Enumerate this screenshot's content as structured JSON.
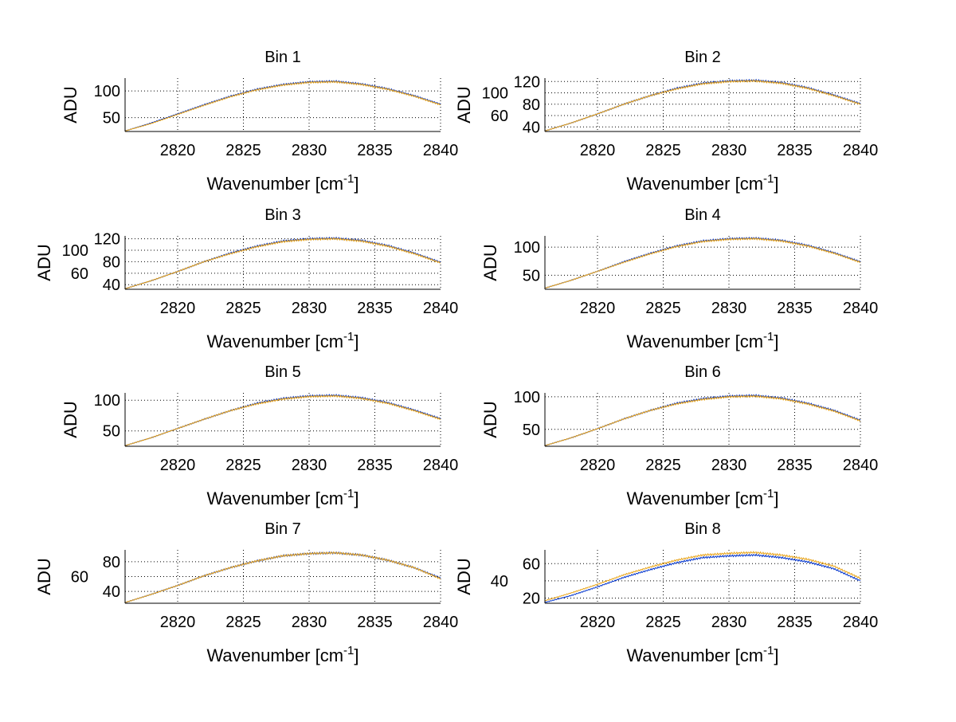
{
  "chart_data": {
    "type": "line",
    "layout": "4x2 grid",
    "x": [
      2816,
      2818,
      2820,
      2822,
      2824,
      2826,
      2828,
      2830,
      2832,
      2834,
      2836,
      2838,
      2840
    ],
    "xlim": [
      2816,
      2840
    ],
    "xticks": [
      2820,
      2825,
      2830,
      2835,
      2840
    ],
    "xlabel": "Wavenumber [cm",
    "xlabel_sup": "-1",
    "xlabel_end": "]",
    "ylabel": "ADU",
    "grid": true,
    "series_colors": [
      "#0033cc",
      "#e8a317"
    ],
    "subplots": [
      {
        "title": "Bin 1",
        "ylim": [
          24,
          124
        ],
        "yticks": [
          50,
          100
        ],
        "series": [
          [
            25,
            40,
            57,
            74,
            90,
            103,
            112,
            117,
            118,
            113,
            104,
            91,
            75
          ],
          [
            25,
            39,
            56,
            73,
            89,
            102,
            111,
            116,
            117,
            112,
            103,
            90,
            74
          ]
        ]
      },
      {
        "title": "Bin 2",
        "ylim": [
          32,
          126
        ],
        "yticks": [
          40,
          60,
          80,
          100,
          120
        ],
        "series": [
          [
            33,
            47,
            63,
            80,
            95,
            108,
            117,
            121,
            122,
            118,
            109,
            96,
            81
          ],
          [
            33,
            47,
            63,
            80,
            95,
            107,
            116,
            120,
            121,
            117,
            108,
            95,
            80
          ]
        ]
      },
      {
        "title": "Bin 3",
        "ylim": [
          32,
          125
        ],
        "yticks": [
          40,
          60,
          80,
          100,
          120
        ],
        "series": [
          [
            33,
            47,
            63,
            80,
            95,
            107,
            116,
            120,
            121,
            117,
            108,
            95,
            79
          ],
          [
            33,
            47,
            63,
            80,
            94,
            106,
            115,
            119,
            120,
            116,
            107,
            94,
            78
          ]
        ]
      },
      {
        "title": "Bin 4",
        "ylim": [
          25,
          120
        ],
        "yticks": [
          50,
          100
        ],
        "series": [
          [
            27,
            41,
            57,
            74,
            89,
            102,
            111,
            115,
            116,
            112,
            103,
            90,
            74
          ],
          [
            27,
            41,
            57,
            73,
            88,
            101,
            110,
            114,
            115,
            111,
            102,
            89,
            73
          ]
        ]
      },
      {
        "title": "Bin 5",
        "ylim": [
          25,
          112
        ],
        "yticks": [
          50,
          100
        ],
        "series": [
          [
            26,
            39,
            54,
            69,
            83,
            95,
            103,
            107,
            108,
            104,
            96,
            84,
            70
          ],
          [
            26,
            39,
            54,
            69,
            83,
            94,
            102,
            106,
            107,
            103,
            95,
            83,
            69
          ]
        ]
      },
      {
        "title": "Bin 6",
        "ylim": [
          24,
          106
        ],
        "yticks": [
          50,
          100
        ],
        "series": [
          [
            25,
            37,
            51,
            66,
            79,
            90,
            97,
            101,
            102,
            98,
            90,
            79,
            64
          ],
          [
            25,
            37,
            51,
            66,
            79,
            89,
            96,
            100,
            101,
            97,
            89,
            78,
            63
          ]
        ]
      },
      {
        "title": "Bin 7",
        "ylim": [
          24,
          96
        ],
        "yticks": [
          40,
          60,
          80
        ],
        "series": [
          [
            25,
            36,
            48,
            61,
            72,
            81,
            88,
            91,
            92,
            89,
            82,
            72,
            58
          ],
          [
            25,
            36,
            48,
            61,
            72,
            81,
            88,
            91,
            92,
            89,
            82,
            72,
            57
          ]
        ]
      },
      {
        "title": "Bin 8",
        "ylim": [
          14,
          76
        ],
        "yticks": [
          20,
          40,
          60
        ],
        "series": [
          [
            15,
            23,
            33,
            44,
            53,
            61,
            67,
            69,
            70,
            67,
            62,
            54,
            40
          ],
          [
            17,
            26,
            36,
            47,
            56,
            64,
            70,
            72,
            73,
            70,
            65,
            57,
            43
          ]
        ]
      }
    ]
  }
}
